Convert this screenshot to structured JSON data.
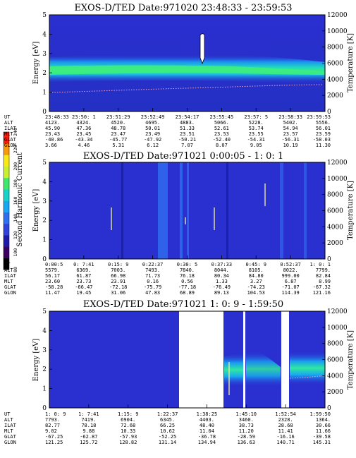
{
  "chart_data": {
    "type": "heatmap",
    "colorbar": {
      "label": "Second Harmonic Current",
      "ticks": [
        "80",
        "100",
        "120",
        "140",
        "160",
        "180",
        "200",
        "220",
        "240"
      ],
      "colors": [
        "#000000",
        "#3b0060",
        "#1f1aa8",
        "#2f43dc",
        "#2f6ff0",
        "#19a6f2",
        "#16d2c8",
        "#3fe86a",
        "#c8f030",
        "#f8e818",
        "#f89a10",
        "#f02010"
      ]
    },
    "panels": [
      {
        "title": "EXOS-D/TED   Date:971020  23:48:33 - 23:59:53",
        "ylabel": "Energy [eV]",
        "y2label": "Temperature [K]",
        "ylim": [
          0,
          5
        ],
        "y2lim": [
          0,
          12000
        ],
        "yticks": [
          "0",
          "1",
          "2",
          "3",
          "4",
          "5"
        ],
        "y2ticks": [
          "0",
          "2000",
          "4000",
          "6000",
          "8000",
          "10000",
          "12000"
        ],
        "row_labels": [
          "UT",
          "ALT",
          "ILAT",
          "MLT",
          "GLAT",
          "GLON"
        ],
        "columns": [
          [
            "23:48:33",
            "4123.",
            "45.90",
            "23.43",
            "-40.86",
            "3.66"
          ],
          [
            "23:50: 1",
            "4324.",
            "47.36",
            "23.45",
            "-43.34",
            "4.46"
          ],
          [
            "23:51:29",
            "4520.",
            "48.78",
            "23.47",
            "-45.77",
            "5.31"
          ],
          [
            "23:52:49",
            "4695.",
            "50.01",
            "23.49",
            "-47.92",
            "6.12"
          ],
          [
            "23:54:17",
            "4883.",
            "51.33",
            "23.51",
            "-50.21",
            "7.07"
          ],
          [
            "23:55:45",
            "5066.",
            "52.61",
            "23.53",
            "-52.40",
            "8.07"
          ],
          [
            "23:57: 5",
            "5228.",
            "53.74",
            "23.55",
            "-54.31",
            "9.05"
          ],
          [
            "23:58:33",
            "5402.",
            "54.94",
            "23.57",
            "-56.31",
            "10.19"
          ],
          [
            "23:59:53",
            "5556.",
            "56.01",
            "23.59",
            "-58.03",
            "11.30"
          ]
        ]
      },
      {
        "title": "EXOS-D/TED   Date:971021  0:00:05 - 1: 0: 1",
        "ylabel": "Energy [eV]",
        "y2label": "Temperature [K]",
        "ylim": [
          0,
          5
        ],
        "y2lim": [
          0,
          12000
        ],
        "yticks": [
          "0",
          "1",
          "2",
          "3",
          "4",
          "5"
        ],
        "y2ticks": [
          "0",
          "2000",
          "4000",
          "6000",
          "8000",
          "10000",
          "12000"
        ],
        "row_labels": [
          "UT",
          "ALT",
          "ILAT",
          "MLT",
          "GLAT",
          "GLON"
        ],
        "columns": [
          [
            "0:00:5",
            "5579.",
            "56.17",
            "23.60",
            "-58.28",
            "11.47"
          ],
          [
            "0: 7:41",
            "6369.",
            "61.87",
            "23.73",
            "-66.47",
            "19.45"
          ],
          [
            "0:15: 9",
            "7003.",
            "66.98",
            "23.91",
            "-72.18",
            "31.06"
          ],
          [
            "0:22:37",
            "7493.",
            "71.73",
            "0.16",
            "-75.79",
            "47.83"
          ],
          [
            "0:30: 5",
            "7840.",
            "76.18",
            "0.56",
            "-77.18",
            "68.89"
          ],
          [
            "0:37:33",
            "8044.",
            "80.34",
            "1.33",
            "-76.49",
            "89.13"
          ],
          [
            "0:45: 9",
            "8105.",
            "84.80",
            "3.27",
            "-74.23",
            "104.53"
          ],
          [
            "0:52:37",
            "8022.",
            "999.00",
            "6.87",
            "-71.07",
            "114.39"
          ],
          [
            "1: 0: 1",
            "7799.",
            "82.84",
            "8.99",
            "-67.32",
            "121.16"
          ]
        ]
      },
      {
        "title": "EXOS-D/TED   Date:971021  1: 0: 9 - 1:59:50",
        "ylabel": "Energy [eV]",
        "y2label": "Temperature [K]",
        "ylim": [
          0,
          5
        ],
        "y2lim": [
          0,
          12000
        ],
        "yticks": [
          "0",
          "1",
          "2",
          "3",
          "4",
          "5"
        ],
        "y2ticks": [
          "0",
          "2000",
          "4000",
          "6000",
          "8000",
          "10000",
          "12000"
        ],
        "row_labels": [
          "UT",
          "ALT",
          "ILAT",
          "MLT",
          "GLAT",
          "GLON"
        ],
        "columns": [
          [
            "1: 0: 9",
            "7793.",
            "82.77",
            "9.02",
            "-67.25",
            "121.25"
          ],
          [
            "1: 7:41",
            "7419.",
            "78.18",
            "9.88",
            "-62.87",
            "125.72"
          ],
          [
            "1:15: 9",
            "6904.",
            "72.68",
            "10.33",
            "-57.93",
            "128.82"
          ],
          [
            "1:22:37",
            "6345.",
            "66.25",
            "10.62",
            "-52.25",
            "131.14"
          ],
          [
            "1:38:25",
            "4403.",
            "48.40",
            "11.04",
            "-36.78",
            "134.94"
          ],
          [
            "1:45:10",
            "3460.",
            "38.73",
            "11.20",
            "-28.59",
            "136.63"
          ],
          [
            "1:52:54",
            "2328.",
            "28.68",
            "11.41",
            "-16.16",
            "140.71"
          ],
          [
            "1:59:50",
            "1364.",
            "30.66",
            "11.66",
            "-39.58",
            "145.31"
          ]
        ]
      }
    ]
  }
}
